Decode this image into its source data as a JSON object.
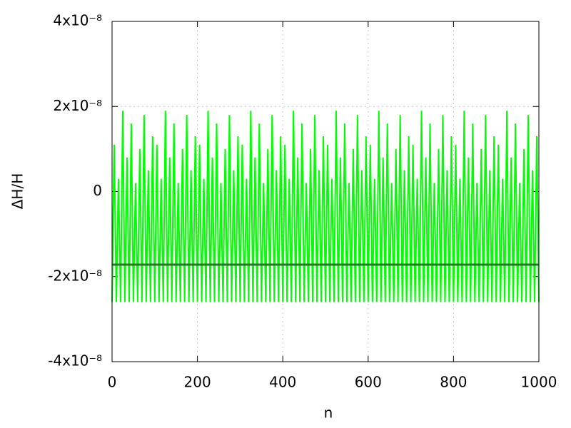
{
  "chart_data": {
    "type": "line",
    "x_label": "n",
    "y_label": "ΔH/H",
    "xlim": [
      0,
      1000
    ],
    "xticks": [
      0,
      200,
      400,
      600,
      800,
      1000
    ],
    "ylim": [
      -4e-08,
      4e-08
    ],
    "yticks": [
      {
        "value": -4e-08,
        "label": "-4x10⁻⁸"
      },
      {
        "value": -2e-08,
        "label": "-2x10⁻⁸"
      },
      {
        "value": 0,
        "label": "0"
      },
      {
        "value": 2e-08,
        "label": "2x10⁻⁸"
      },
      {
        "value": 4e-08,
        "label": "4x10⁻⁸"
      }
    ],
    "grid": true,
    "x": [
      0,
      5,
      10,
      15,
      20,
      25,
      30,
      35,
      40,
      45,
      50,
      55,
      60,
      65,
      70,
      75,
      80,
      85,
      90,
      95,
      100,
      105,
      110,
      115,
      120,
      125,
      130,
      135,
      140,
      145,
      150,
      155,
      160,
      165,
      170,
      175,
      180,
      185,
      190,
      195,
      200,
      205,
      210,
      215,
      220,
      225,
      230,
      235,
      240,
      245,
      250,
      255,
      260,
      265,
      270,
      275,
      280,
      285,
      290,
      295,
      300,
      305,
      310,
      315,
      320,
      325,
      330,
      335,
      340,
      345,
      350,
      355,
      360,
      365,
      370,
      375,
      380,
      385,
      390,
      395,
      400,
      405,
      410,
      415,
      420,
      425,
      430,
      435,
      440,
      445,
      450,
      455,
      460,
      465,
      470,
      475,
      480,
      485,
      490,
      495,
      500,
      505,
      510,
      515,
      520,
      525,
      530,
      535,
      540,
      545,
      550,
      555,
      560,
      565,
      570,
      575,
      580,
      585,
      590,
      595,
      600,
      605,
      610,
      615,
      620,
      625,
      630,
      635,
      640,
      645,
      650,
      655,
      660,
      665,
      670,
      675,
      680,
      685,
      690,
      695,
      700,
      705,
      710,
      715,
      720,
      725,
      730,
      735,
      740,
      745,
      750,
      755,
      760,
      765,
      770,
      775,
      780,
      785,
      790,
      795,
      800,
      805,
      810,
      815,
      820,
      825,
      830,
      835,
      840,
      845,
      850,
      855,
      860,
      865,
      870,
      875,
      880,
      885,
      890,
      895,
      900,
      905,
      910,
      915,
      920,
      925,
      930,
      935,
      940,
      945,
      950,
      955,
      960,
      965,
      970,
      975,
      980,
      985,
      990,
      995,
      1000
    ],
    "series": [
      {
        "color": "#00ff00",
        "values": [
          -2.6e-08,
          1.1e-08,
          -2.6e-08,
          3e-09,
          -2.6e-08,
          1.9e-08,
          -2.6e-08,
          8e-09,
          -2.6e-08,
          1.6e-08,
          -2.6e-08,
          2e-09,
          -2.6e-08,
          1e-08,
          -2.6e-08,
          1.8e-08,
          -2.6e-08,
          5e-09,
          -2.6e-08,
          1.3e-08,
          -2.6e-08,
          1.1e-08,
          -2.6e-08,
          3e-09,
          -2.6e-08,
          1.9e-08,
          -2.6e-08,
          8e-09,
          -2.6e-08,
          1.6e-08,
          -2.6e-08,
          2e-09,
          -2.6e-08,
          1e-08,
          -2.6e-08,
          1.8e-08,
          -2.6e-08,
          5e-09,
          -2.6e-08,
          1.3e-08,
          -2.6e-08,
          1.1e-08,
          -2.6e-08,
          3e-09,
          -2.6e-08,
          1.9e-08,
          -2.6e-08,
          8e-09,
          -2.6e-08,
          1.6e-08,
          -2.6e-08,
          2e-09,
          -2.6e-08,
          1e-08,
          -2.6e-08,
          1.8e-08,
          -2.6e-08,
          5e-09,
          -2.6e-08,
          1.3e-08,
          -2.6e-08,
          1.1e-08,
          -2.6e-08,
          3e-09,
          -2.6e-08,
          1.9e-08,
          -2.6e-08,
          8e-09,
          -2.6e-08,
          1.6e-08,
          -2.6e-08,
          2e-09,
          -2.6e-08,
          1e-08,
          -2.6e-08,
          1.8e-08,
          -2.6e-08,
          5e-09,
          -2.6e-08,
          1.3e-08,
          -2.6e-08,
          1.1e-08,
          -2.6e-08,
          3e-09,
          -2.6e-08,
          1.9e-08,
          -2.6e-08,
          8e-09,
          -2.6e-08,
          1.6e-08,
          -2.6e-08,
          2e-09,
          -2.6e-08,
          1e-08,
          -2.6e-08,
          1.8e-08,
          -2.6e-08,
          5e-09,
          -2.6e-08,
          1.3e-08,
          -2.6e-08,
          1.1e-08,
          -2.6e-08,
          3e-09,
          -2.6e-08,
          1.9e-08,
          -2.6e-08,
          8e-09,
          -2.6e-08,
          1.6e-08,
          -2.6e-08,
          2e-09,
          -2.6e-08,
          1e-08,
          -2.6e-08,
          1.8e-08,
          -2.6e-08,
          5e-09,
          -2.6e-08,
          1.3e-08,
          -2.6e-08,
          1.1e-08,
          -2.6e-08,
          3e-09,
          -2.6e-08,
          1.9e-08,
          -2.6e-08,
          8e-09,
          -2.6e-08,
          1.6e-08,
          -2.6e-08,
          2e-09,
          -2.6e-08,
          1e-08,
          -2.6e-08,
          1.8e-08,
          -2.6e-08,
          5e-09,
          -2.6e-08,
          1.3e-08,
          -2.6e-08,
          1.1e-08,
          -2.6e-08,
          3e-09,
          -2.6e-08,
          1.9e-08,
          -2.6e-08,
          8e-09,
          -2.6e-08,
          1.6e-08,
          -2.6e-08,
          2e-09,
          -2.6e-08,
          1e-08,
          -2.6e-08,
          1.8e-08,
          -2.6e-08,
          5e-09,
          -2.6e-08,
          1.3e-08,
          -2.6e-08,
          1.1e-08,
          -2.6e-08,
          3e-09,
          -2.6e-08,
          1.9e-08,
          -2.6e-08,
          8e-09,
          -2.6e-08,
          1.6e-08,
          -2.6e-08,
          2e-09,
          -2.6e-08,
          1e-08,
          -2.6e-08,
          1.8e-08,
          -2.6e-08,
          5e-09,
          -2.6e-08,
          1.3e-08,
          -2.6e-08,
          1.1e-08,
          -2.6e-08,
          3e-09,
          -2.6e-08,
          1.9e-08,
          -2.6e-08,
          8e-09,
          -2.6e-08,
          1.6e-08,
          -2.6e-08,
          2e-09,
          -2.6e-08,
          1e-08,
          -2.6e-08,
          1.8e-08,
          -2.6e-08,
          5e-09,
          -2.6e-08,
          1.3e-08,
          -2.6e-08
        ]
      }
    ],
    "reference_line": {
      "value": -1.72e-08,
      "color": "#1f7a1f"
    }
  }
}
